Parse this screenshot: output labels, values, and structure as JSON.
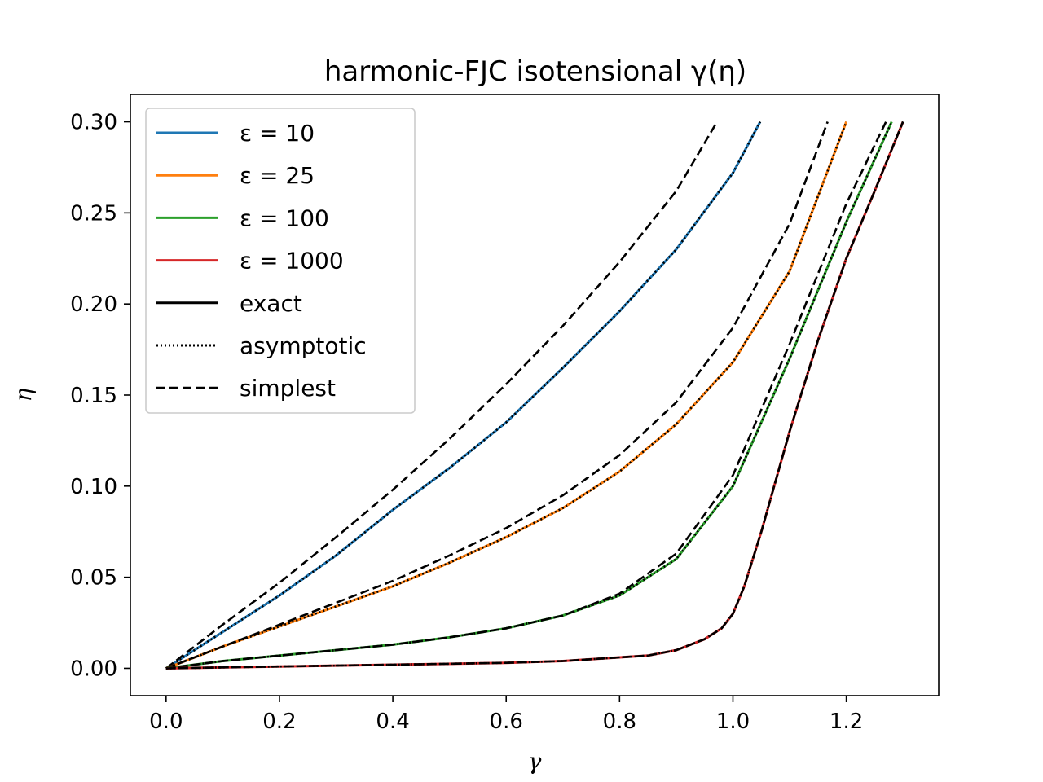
{
  "chart_data": {
    "type": "line",
    "title": "harmonic-FJC isotensional γ(η)",
    "xlabel": "γ",
    "ylabel": "η",
    "xlim": [
      -0.063,
      1.363
    ],
    "ylim": [
      -0.015,
      0.315
    ],
    "xticks": [
      0.0,
      0.2,
      0.4,
      0.6,
      0.8,
      1.0,
      1.2
    ],
    "xtick_labels": [
      "0.0",
      "0.2",
      "0.4",
      "0.6",
      "0.8",
      "1.0",
      "1.2"
    ],
    "yticks": [
      0.0,
      0.05,
      0.1,
      0.15,
      0.2,
      0.25,
      0.3
    ],
    "ytick_labels": [
      "0.00",
      "0.05",
      "0.10",
      "0.15",
      "0.20",
      "0.25",
      "0.30"
    ],
    "grid": false,
    "legend": {
      "placement": "upper-left",
      "entries": [
        {
          "label": "ε = 10",
          "color": "#1f77b4",
          "style": "solid"
        },
        {
          "label": "ε = 25",
          "color": "#ff7f0e",
          "style": "solid"
        },
        {
          "label": "ε = 100",
          "color": "#2ca02c",
          "style": "solid"
        },
        {
          "label": "ε = 1000",
          "color": "#d62728",
          "style": "solid"
        },
        {
          "label": "exact",
          "color": "#000000",
          "style": "solid"
        },
        {
          "label": "asymptotic",
          "color": "#000000",
          "style": "dotted"
        },
        {
          "label": "simplest",
          "color": "#000000",
          "style": "dashed"
        }
      ]
    },
    "series": [
      {
        "name": "ε = 10",
        "color": "#1f77b4",
        "exact": [
          [
            0.0,
            0.0
          ],
          [
            0.05,
            0.01
          ],
          [
            0.1,
            0.02
          ],
          [
            0.2,
            0.04
          ],
          [
            0.3,
            0.062
          ],
          [
            0.4,
            0.087
          ],
          [
            0.5,
            0.11
          ],
          [
            0.6,
            0.135
          ],
          [
            0.7,
            0.165
          ],
          [
            0.8,
            0.196
          ],
          [
            0.9,
            0.23
          ],
          [
            1.0,
            0.272
          ],
          [
            1.048,
            0.3
          ]
        ],
        "asymptotic": [
          [
            0.0,
            0.0
          ],
          [
            0.05,
            0.01
          ],
          [
            0.1,
            0.02
          ],
          [
            0.2,
            0.04
          ],
          [
            0.3,
            0.062
          ],
          [
            0.4,
            0.087
          ],
          [
            0.5,
            0.11
          ],
          [
            0.6,
            0.135
          ],
          [
            0.7,
            0.165
          ],
          [
            0.8,
            0.196
          ],
          [
            0.9,
            0.23
          ],
          [
            1.0,
            0.272
          ],
          [
            1.048,
            0.3
          ]
        ],
        "simplest": [
          [
            0.0,
            0.0
          ],
          [
            0.1,
            0.024
          ],
          [
            0.2,
            0.047
          ],
          [
            0.3,
            0.072
          ],
          [
            0.4,
            0.098
          ],
          [
            0.5,
            0.126
          ],
          [
            0.6,
            0.156
          ],
          [
            0.7,
            0.188
          ],
          [
            0.8,
            0.223
          ],
          [
            0.9,
            0.262
          ],
          [
            0.972,
            0.3
          ]
        ]
      },
      {
        "name": "ε = 25",
        "color": "#ff7f0e",
        "exact": [
          [
            0.0,
            0.0
          ],
          [
            0.1,
            0.012
          ],
          [
            0.2,
            0.023
          ],
          [
            0.3,
            0.034
          ],
          [
            0.4,
            0.045
          ],
          [
            0.5,
            0.058
          ],
          [
            0.6,
            0.072
          ],
          [
            0.7,
            0.088
          ],
          [
            0.8,
            0.108
          ],
          [
            0.9,
            0.134
          ],
          [
            1.0,
            0.168
          ],
          [
            1.1,
            0.218
          ],
          [
            1.2,
            0.3
          ]
        ],
        "asymptotic": [
          [
            0.0,
            0.0
          ],
          [
            0.1,
            0.012
          ],
          [
            0.2,
            0.023
          ],
          [
            0.3,
            0.034
          ],
          [
            0.4,
            0.045
          ],
          [
            0.5,
            0.058
          ],
          [
            0.6,
            0.072
          ],
          [
            0.7,
            0.088
          ],
          [
            0.8,
            0.108
          ],
          [
            0.9,
            0.134
          ],
          [
            1.0,
            0.168
          ],
          [
            1.1,
            0.218
          ],
          [
            1.2,
            0.3
          ]
        ],
        "simplest": [
          [
            0.0,
            0.0
          ],
          [
            0.1,
            0.012
          ],
          [
            0.2,
            0.024
          ],
          [
            0.3,
            0.036
          ],
          [
            0.4,
            0.048
          ],
          [
            0.5,
            0.062
          ],
          [
            0.6,
            0.077
          ],
          [
            0.7,
            0.095
          ],
          [
            0.8,
            0.117
          ],
          [
            0.9,
            0.146
          ],
          [
            1.0,
            0.187
          ],
          [
            1.1,
            0.244
          ],
          [
            1.167,
            0.3
          ]
        ]
      },
      {
        "name": "ε = 100",
        "color": "#2ca02c",
        "exact": [
          [
            0.0,
            0.0
          ],
          [
            0.1,
            0.004
          ],
          [
            0.2,
            0.007
          ],
          [
            0.3,
            0.01
          ],
          [
            0.4,
            0.013
          ],
          [
            0.5,
            0.017
          ],
          [
            0.6,
            0.022
          ],
          [
            0.7,
            0.029
          ],
          [
            0.8,
            0.04
          ],
          [
            0.9,
            0.06
          ],
          [
            1.0,
            0.1
          ],
          [
            1.1,
            0.17
          ],
          [
            1.2,
            0.245
          ],
          [
            1.28,
            0.3
          ]
        ],
        "asymptotic": [
          [
            0.0,
            0.0
          ],
          [
            0.1,
            0.004
          ],
          [
            0.2,
            0.007
          ],
          [
            0.3,
            0.01
          ],
          [
            0.4,
            0.013
          ],
          [
            0.5,
            0.017
          ],
          [
            0.6,
            0.022
          ],
          [
            0.7,
            0.029
          ],
          [
            0.8,
            0.04
          ],
          [
            0.9,
            0.06
          ],
          [
            1.0,
            0.1
          ],
          [
            1.1,
            0.17
          ],
          [
            1.2,
            0.245
          ],
          [
            1.28,
            0.3
          ]
        ],
        "simplest": [
          [
            0.0,
            0.0
          ],
          [
            0.1,
            0.004
          ],
          [
            0.2,
            0.007
          ],
          [
            0.3,
            0.01
          ],
          [
            0.4,
            0.013
          ],
          [
            0.5,
            0.017
          ],
          [
            0.6,
            0.022
          ],
          [
            0.7,
            0.029
          ],
          [
            0.8,
            0.041
          ],
          [
            0.9,
            0.063
          ],
          [
            1.0,
            0.106
          ],
          [
            1.1,
            0.178
          ],
          [
            1.2,
            0.255
          ],
          [
            1.27,
            0.3
          ]
        ]
      },
      {
        "name": "ε = 1000",
        "color": "#d62728",
        "exact": [
          [
            0.0,
            0.0
          ],
          [
            0.2,
            0.001
          ],
          [
            0.4,
            0.002
          ],
          [
            0.6,
            0.003
          ],
          [
            0.7,
            0.004
          ],
          [
            0.8,
            0.006
          ],
          [
            0.85,
            0.007
          ],
          [
            0.9,
            0.01
          ],
          [
            0.95,
            0.016
          ],
          [
            0.98,
            0.022
          ],
          [
            1.0,
            0.03
          ],
          [
            1.02,
            0.045
          ],
          [
            1.05,
            0.075
          ],
          [
            1.1,
            0.13
          ],
          [
            1.15,
            0.18
          ],
          [
            1.2,
            0.225
          ],
          [
            1.25,
            0.262
          ],
          [
            1.3,
            0.3
          ]
        ],
        "asymptotic": [
          [
            0.0,
            0.0
          ],
          [
            0.2,
            0.001
          ],
          [
            0.4,
            0.002
          ],
          [
            0.6,
            0.003
          ],
          [
            0.7,
            0.004
          ],
          [
            0.8,
            0.006
          ],
          [
            0.85,
            0.007
          ],
          [
            0.9,
            0.01
          ],
          [
            0.95,
            0.016
          ],
          [
            0.98,
            0.022
          ],
          [
            1.0,
            0.03
          ],
          [
            1.02,
            0.045
          ],
          [
            1.05,
            0.075
          ],
          [
            1.1,
            0.13
          ],
          [
            1.15,
            0.18
          ],
          [
            1.2,
            0.225
          ],
          [
            1.25,
            0.262
          ],
          [
            1.3,
            0.3
          ]
        ],
        "simplest": [
          [
            0.0,
            0.0
          ],
          [
            0.2,
            0.001
          ],
          [
            0.4,
            0.002
          ],
          [
            0.6,
            0.003
          ],
          [
            0.7,
            0.004
          ],
          [
            0.8,
            0.006
          ],
          [
            0.85,
            0.007
          ],
          [
            0.9,
            0.01
          ],
          [
            0.95,
            0.016
          ],
          [
            0.98,
            0.022
          ],
          [
            1.0,
            0.03
          ],
          [
            1.02,
            0.045
          ],
          [
            1.05,
            0.075
          ],
          [
            1.1,
            0.13
          ],
          [
            1.15,
            0.18
          ],
          [
            1.2,
            0.225
          ],
          [
            1.25,
            0.262
          ],
          [
            1.3,
            0.3
          ]
        ]
      }
    ]
  }
}
